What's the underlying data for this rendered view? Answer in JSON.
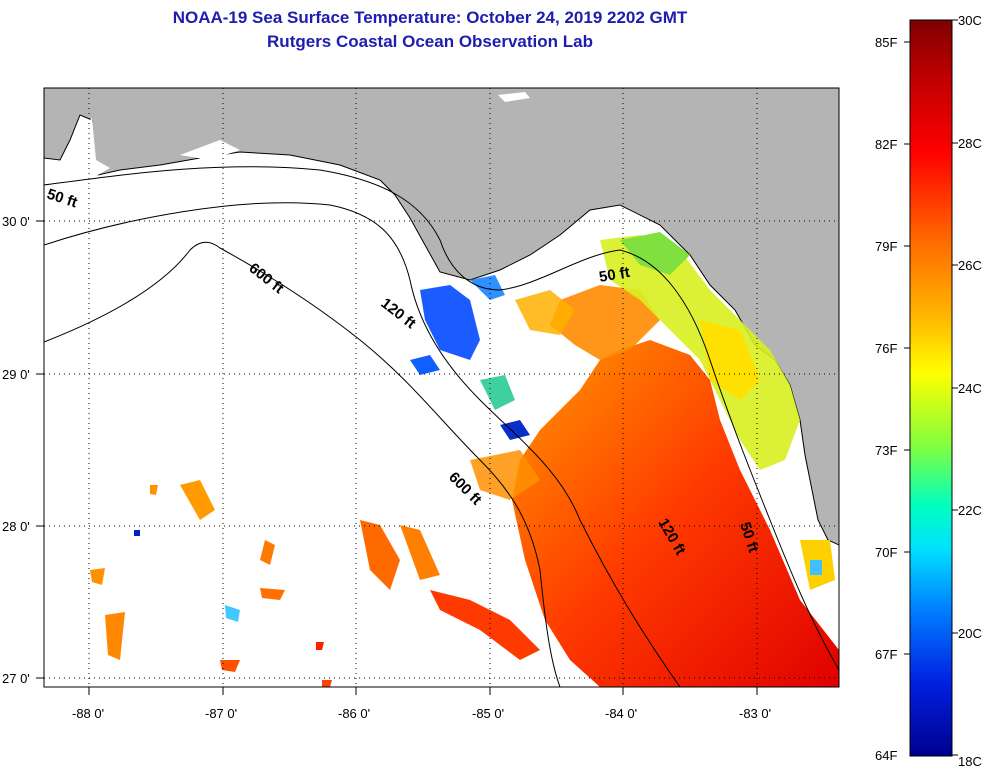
{
  "title_line1": "NOAA-19 Sea Surface Temperature:  October 24, 2019 2202 GMT",
  "title_line2": "Rutgers Coastal Ocean Observation Lab",
  "map": {
    "lon_labels": [
      "-88 0'",
      "-87 0'",
      "-86 0'",
      "-85 0'",
      "-84 0'",
      "-83 0'"
    ],
    "lat_labels": [
      "30 0'",
      "29 0'",
      "28 0'",
      "27 0'"
    ],
    "contours": [
      "50 ft",
      "600 ft",
      "120 ft",
      "600 ft",
      "50 ft",
      "120 ft",
      "50 ft"
    ],
    "colors": {
      "land": "#b4b4b4",
      "no_data": "#ffffff"
    }
  },
  "colorbar": {
    "f_labels": [
      "85F",
      "82F",
      "79F",
      "76F",
      "73F",
      "70F",
      "67F",
      "64F"
    ],
    "c_labels": [
      "30C",
      "28C",
      "26C",
      "24C",
      "22C",
      "20C",
      "18C"
    ],
    "colors": [
      "#7f0000",
      "#ff0000",
      "#ff8000",
      "#ffff00",
      "#00ffff",
      "#0040ff",
      "#00008f"
    ]
  }
}
